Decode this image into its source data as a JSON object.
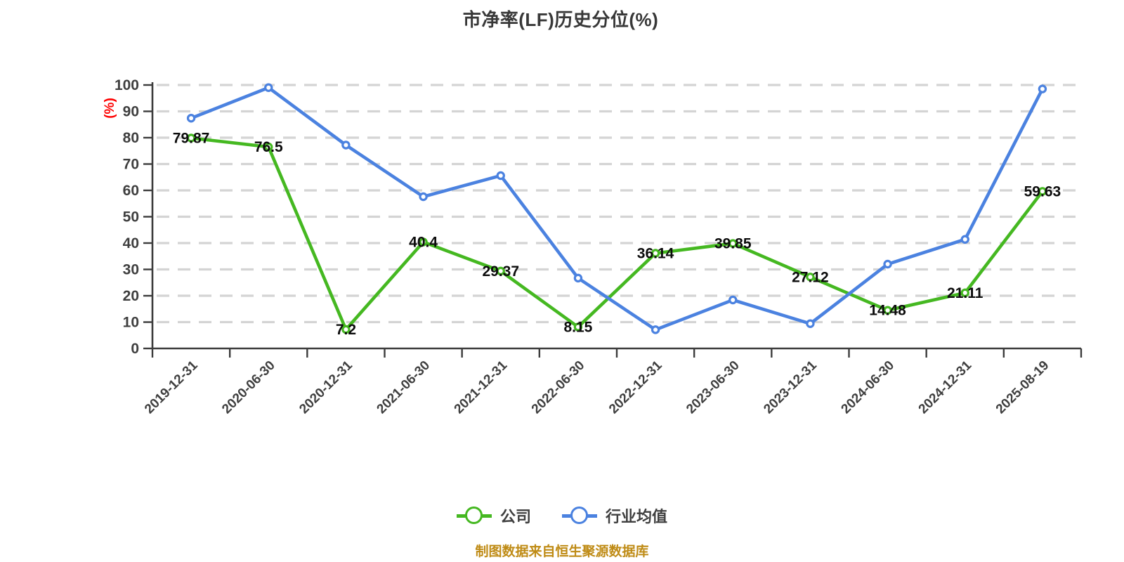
{
  "title": "市净率(LF)历史分位(%)",
  "y_axis": {
    "unit_label": "(%)",
    "unit_label_color": "#fe0000",
    "min": 0,
    "max": 100,
    "tick_step": 10
  },
  "source_note": {
    "text": "制图数据来自恒生聚源数据库",
    "color": "#bf8b15"
  },
  "style": {
    "axis_color": "#3c3c3c",
    "tick_label_color": "#3f3f3f",
    "gridline_color": "#d4d4d4",
    "data_label_color": "#0c0c0c",
    "background_color": "#ffffff"
  },
  "chart_data": {
    "type": "line",
    "title": "市净率(LF)历史分位(%)",
    "categories": [
      "2019-12-31",
      "2020-06-30",
      "2020-12-31",
      "2021-06-30",
      "2021-12-31",
      "2022-06-30",
      "2022-12-31",
      "2023-06-30",
      "2023-12-31",
      "2024-06-30",
      "2024-12-31",
      "2025-08-19"
    ],
    "series": [
      {
        "name": "公司",
        "color": "#45b821",
        "values": [
          79.87,
          76.5,
          7.2,
          40.4,
          29.37,
          8.15,
          36.14,
          39.85,
          27.12,
          14.48,
          21.11,
          59.63
        ],
        "data_labels": true
      },
      {
        "name": "行业均值",
        "color": "#4b82e0",
        "values": [
          87.4,
          99.0,
          77.2,
          57.6,
          65.6,
          26.7,
          7.1,
          18.4,
          9.4,
          32.0,
          41.4,
          98.5
        ],
        "data_labels": false,
        "values_estimated_from_pixels": true
      }
    ],
    "xlabel": "",
    "ylabel": "(%)",
    "ylim": [
      0,
      100
    ],
    "grid": "horizontal dashed",
    "legend_position": "bottom",
    "marker": "circle-white-fill"
  }
}
